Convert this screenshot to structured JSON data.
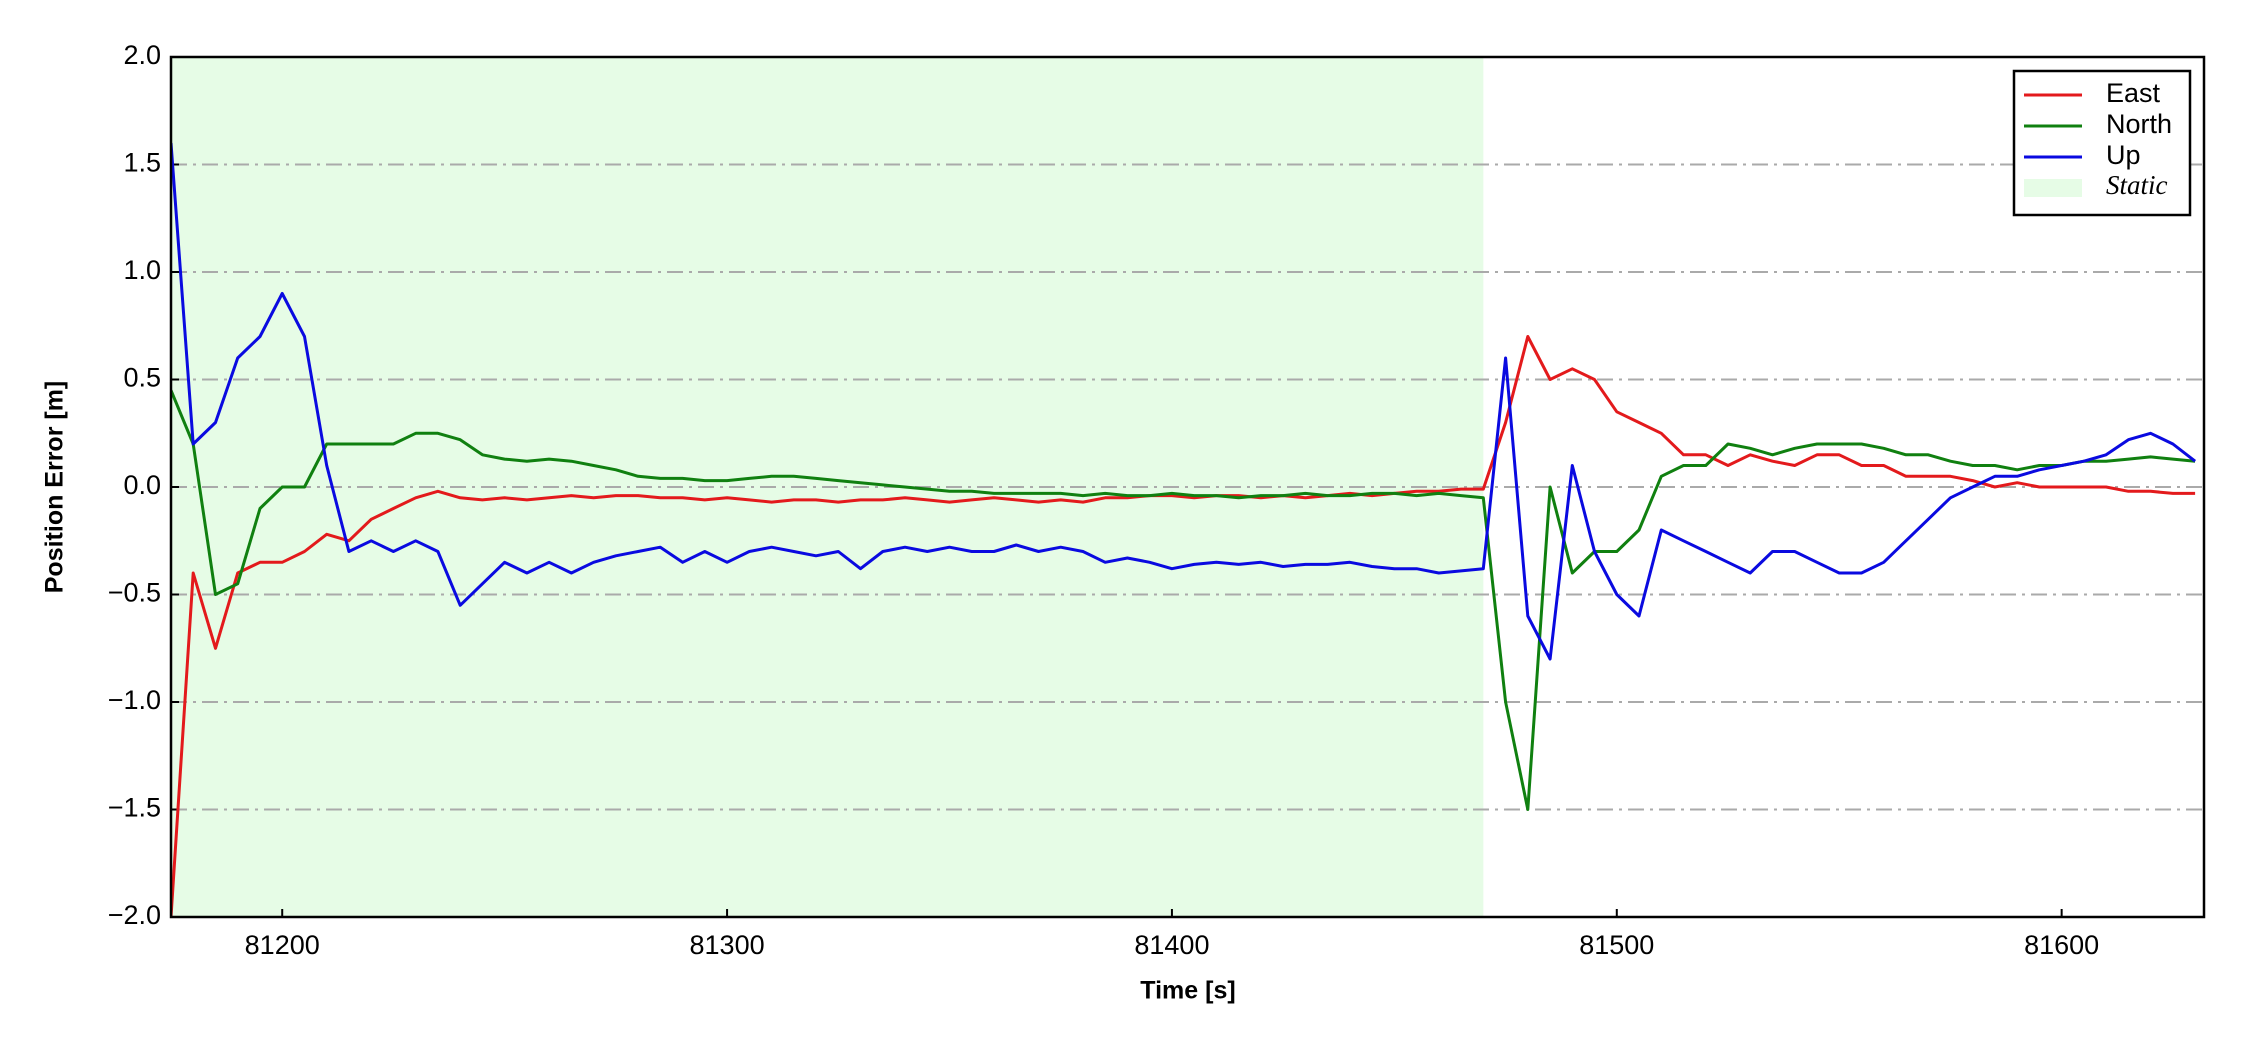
{
  "chart_data": {
    "type": "line",
    "xlabel": "Time [s]",
    "ylabel": "Position Error [m]",
    "x": [
      81175,
      81180,
      81185,
      81190,
      81195,
      81200,
      81205,
      81210,
      81215,
      81220,
      81225,
      81230,
      81235,
      81240,
      81245,
      81250,
      81255,
      81260,
      81265,
      81270,
      81275,
      81280,
      81285,
      81290,
      81295,
      81300,
      81305,
      81310,
      81315,
      81320,
      81325,
      81330,
      81335,
      81340,
      81345,
      81350,
      81355,
      81360,
      81365,
      81370,
      81375,
      81380,
      81385,
      81390,
      81395,
      81400,
      81405,
      81410,
      81415,
      81420,
      81425,
      81430,
      81435,
      81440,
      81445,
      81450,
      81455,
      81460,
      81465,
      81470,
      81475,
      81480,
      81485,
      81490,
      81495,
      81500,
      81505,
      81510,
      81515,
      81520,
      81525,
      81530,
      81535,
      81540,
      81545,
      81550,
      81555,
      81560,
      81565,
      81570,
      81575,
      81580,
      81585,
      81590,
      81595,
      81600,
      81605,
      81610,
      81615,
      81620,
      81625,
      81630
    ],
    "series": [
      {
        "name": "East",
        "color": "#e31a1c",
        "values": [
          -2.0,
          -0.4,
          -0.75,
          -0.4,
          -0.35,
          -0.35,
          -0.3,
          -0.22,
          -0.25,
          -0.15,
          -0.1,
          -0.05,
          -0.02,
          -0.05,
          -0.06,
          -0.05,
          -0.06,
          -0.05,
          -0.04,
          -0.05,
          -0.04,
          -0.04,
          -0.05,
          -0.05,
          -0.06,
          -0.05,
          -0.06,
          -0.07,
          -0.06,
          -0.06,
          -0.07,
          -0.06,
          -0.06,
          -0.05,
          -0.06,
          -0.07,
          -0.06,
          -0.05,
          -0.06,
          -0.07,
          -0.06,
          -0.07,
          -0.05,
          -0.05,
          -0.04,
          -0.04,
          -0.05,
          -0.04,
          -0.04,
          -0.05,
          -0.04,
          -0.05,
          -0.04,
          -0.03,
          -0.04,
          -0.03,
          -0.02,
          -0.02,
          -0.01,
          -0.01,
          0.3,
          0.7,
          0.5,
          0.55,
          0.5,
          0.35,
          0.3,
          0.25,
          0.15,
          0.15,
          0.1,
          0.15,
          0.12,
          0.1,
          0.15,
          0.15,
          0.1,
          0.1,
          0.05,
          0.05,
          0.05,
          0.03,
          0.0,
          0.02,
          0.0,
          0.0,
          0.0,
          0.0,
          -0.02,
          -0.02,
          -0.03,
          -0.03
        ]
      },
      {
        "name": "North",
        "color": "#108010",
        "values": [
          0.45,
          0.2,
          -0.5,
          -0.45,
          -0.1,
          0.0,
          0.0,
          0.2,
          0.2,
          0.2,
          0.2,
          0.25,
          0.25,
          0.22,
          0.15,
          0.13,
          0.12,
          0.13,
          0.12,
          0.1,
          0.08,
          0.05,
          0.04,
          0.04,
          0.03,
          0.03,
          0.04,
          0.05,
          0.05,
          0.04,
          0.03,
          0.02,
          0.01,
          0.0,
          -0.01,
          -0.02,
          -0.02,
          -0.03,
          -0.03,
          -0.03,
          -0.03,
          -0.04,
          -0.03,
          -0.04,
          -0.04,
          -0.03,
          -0.04,
          -0.04,
          -0.05,
          -0.04,
          -0.04,
          -0.03,
          -0.04,
          -0.04,
          -0.03,
          -0.03,
          -0.04,
          -0.03,
          -0.04,
          -0.05,
          -1.0,
          -1.5,
          0.0,
          -0.4,
          -0.3,
          -0.3,
          -0.2,
          0.05,
          0.1,
          0.1,
          0.2,
          0.18,
          0.15,
          0.18,
          0.2,
          0.2,
          0.2,
          0.18,
          0.15,
          0.15,
          0.12,
          0.1,
          0.1,
          0.08,
          0.1,
          0.1,
          0.12,
          0.12,
          0.13,
          0.14,
          0.13,
          0.12
        ]
      },
      {
        "name": "Up",
        "color": "#0a0ae0",
        "values": [
          1.6,
          0.2,
          0.3,
          0.6,
          0.7,
          0.9,
          0.7,
          0.1,
          -0.3,
          -0.25,
          -0.3,
          -0.25,
          -0.3,
          -0.55,
          -0.45,
          -0.35,
          -0.4,
          -0.35,
          -0.4,
          -0.35,
          -0.32,
          -0.3,
          -0.28,
          -0.35,
          -0.3,
          -0.35,
          -0.3,
          -0.28,
          -0.3,
          -0.32,
          -0.3,
          -0.38,
          -0.3,
          -0.28,
          -0.3,
          -0.28,
          -0.3,
          -0.3,
          -0.27,
          -0.3,
          -0.28,
          -0.3,
          -0.35,
          -0.33,
          -0.35,
          -0.38,
          -0.36,
          -0.35,
          -0.36,
          -0.35,
          -0.37,
          -0.36,
          -0.36,
          -0.35,
          -0.37,
          -0.38,
          -0.38,
          -0.4,
          -0.39,
          -0.38,
          0.6,
          -0.6,
          -0.8,
          0.1,
          -0.3,
          -0.5,
          -0.6,
          -0.2,
          -0.25,
          -0.3,
          -0.35,
          -0.4,
          -0.3,
          -0.3,
          -0.35,
          -0.4,
          -0.4,
          -0.35,
          -0.25,
          -0.15,
          -0.05,
          0.0,
          0.05,
          0.05,
          0.08,
          0.1,
          0.12,
          0.15,
          0.22,
          0.25,
          0.2,
          0.12
        ]
      }
    ],
    "spans": [
      {
        "name": "Static",
        "color": "#e6fce6",
        "xmin": 81175,
        "xmax": 81470
      }
    ],
    "xlim": [
      81175,
      81632
    ],
    "xticks": [
      81200,
      81300,
      81400,
      81500,
      81600
    ],
    "ylim": [
      -2.0,
      2.0
    ],
    "yticks": [
      {
        "value": -2.0,
        "label": "−2.0"
      },
      {
        "value": -1.5,
        "label": "−1.5"
      },
      {
        "value": -1.0,
        "label": "−1.0"
      },
      {
        "value": -0.5,
        "label": "−0.5"
      },
      {
        "value": 0,
        "label": "0.0"
      },
      {
        "value": 0.5,
        "label": "0.5"
      },
      {
        "value": 1.0,
        "label": "1.0"
      },
      {
        "value": 1.5,
        "label": "1.5"
      },
      {
        "value": 2.0,
        "label": "2.0"
      }
    ],
    "grid": true,
    "legend": "upper right"
  }
}
